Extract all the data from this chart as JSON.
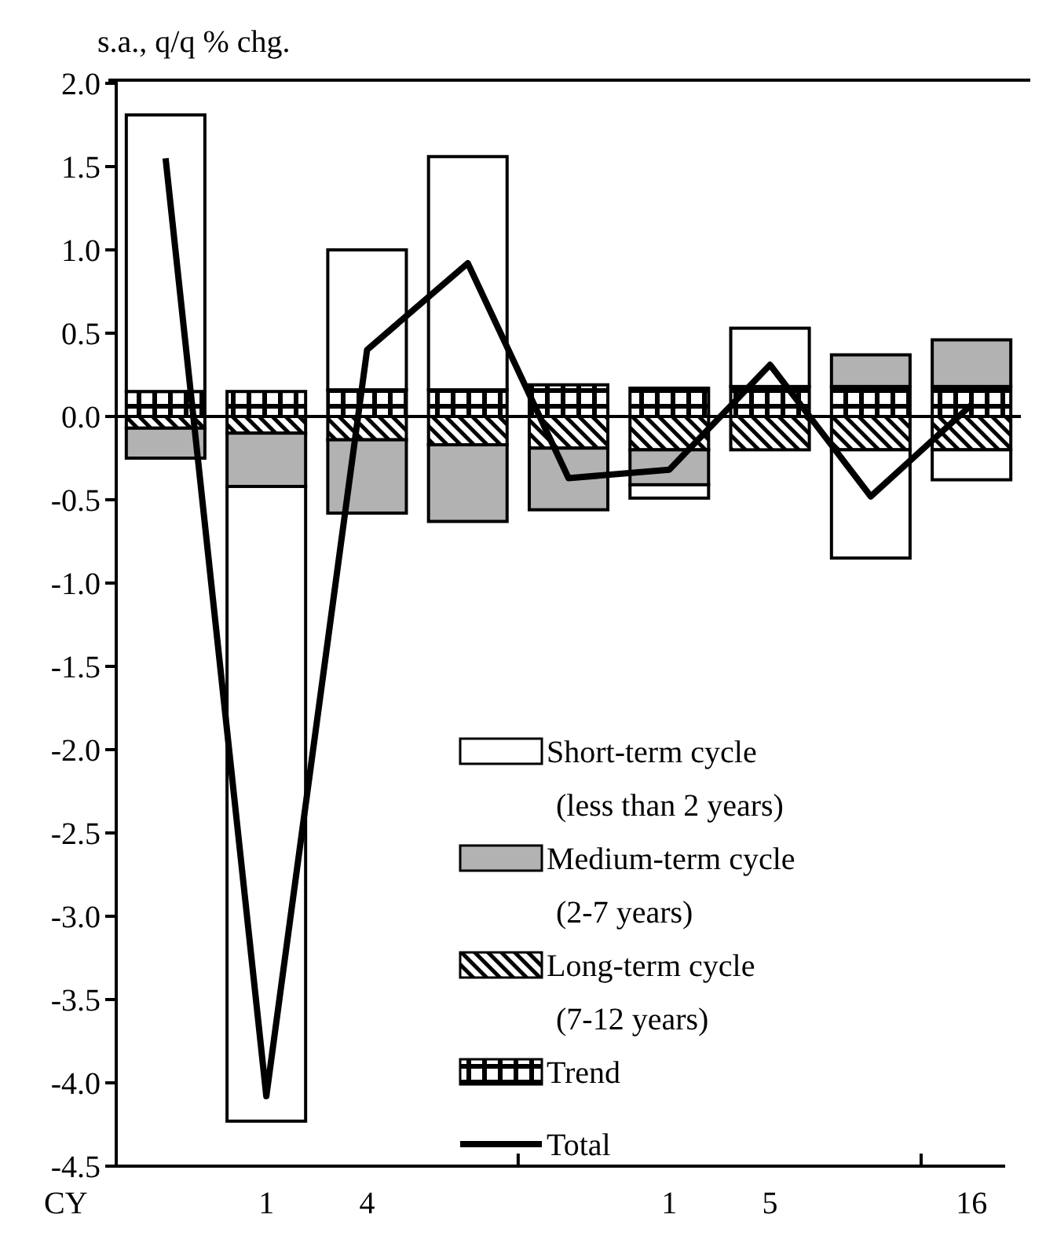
{
  "chart_data": {
    "type": "bar",
    "stacked": true,
    "ylabel": "s.a., q/q % chg.",
    "categories": [
      null,
      "1",
      "4",
      null,
      null,
      "1",
      "5",
      null,
      "16"
    ],
    "series": [
      {
        "name": "Trend",
        "color": "#000000",
        "values": [
          0.15,
          0.15,
          0.16,
          0.16,
          0.19,
          0.17,
          0.18,
          0.18,
          0.18
        ]
      },
      {
        "name": "Long-term cycle (7-12 years)",
        "color": "#000000",
        "values": [
          -0.07,
          -0.1,
          -0.14,
          -0.17,
          -0.19,
          -0.2,
          -0.2,
          -0.2,
          -0.2
        ]
      },
      {
        "name": "Medium-term cycle (2-7 years)",
        "color": "#b2b2b2",
        "values": [
          -0.18,
          -0.32,
          -0.44,
          -0.46,
          -0.37,
          -0.21,
          0,
          0.19,
          0.28
        ]
      },
      {
        "name": "Short-term cycle (less than 2 years)",
        "color": "#ffffff",
        "values": [
          1.66,
          -3.81,
          0.84,
          1.4,
          0,
          -0.08,
          0.35,
          -0.65,
          -0.18
        ]
      },
      {
        "name": "Total",
        "type": "line",
        "color": "#000000",
        "values": [
          1.55,
          -4.08,
          0.4,
          0.92,
          -0.37,
          -0.32,
          0.31,
          -0.48,
          0.07
        ]
      }
    ],
    "ylim": [
      -4.5,
      2.0
    ],
    "yticks": [
      {
        "value": 2,
        "label": "2.0"
      },
      {
        "value": 1.5,
        "label": "1.5"
      },
      {
        "value": 1,
        "label": "1.0"
      },
      {
        "value": 0.5,
        "label": "0.5"
      },
      {
        "value": 0,
        "label": "0.0"
      },
      {
        "value": -0.5,
        "label": "-0.5"
      },
      {
        "value": -1,
        "label": "-1.0"
      },
      {
        "value": -1.5,
        "label": "-1.5"
      },
      {
        "value": -2,
        "label": "-2.0"
      },
      {
        "value": -2.5,
        "label": "-2.5"
      },
      {
        "value": -3,
        "label": "-3.0"
      },
      {
        "value": -3.5,
        "label": "-3.5"
      },
      {
        "value": -4,
        "label": "-4.0"
      },
      {
        "value": -4.5,
        "label": "-4.5"
      }
    ],
    "annotations": [
      "CY"
    ],
    "legend": "bottom right"
  }
}
